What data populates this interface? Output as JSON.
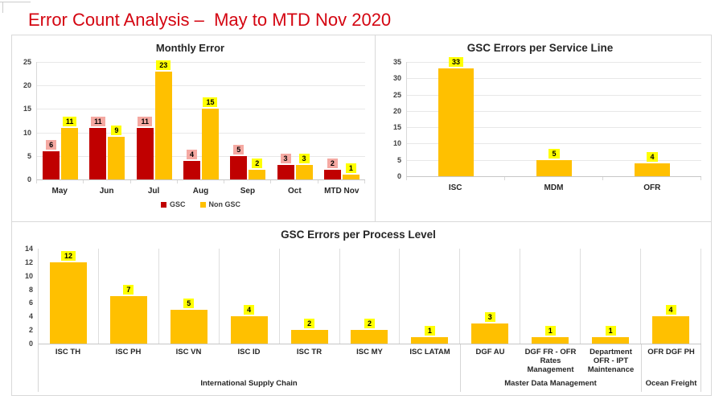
{
  "page_title": "Error Count Analysis –  May to MTD Nov 2020",
  "colors": {
    "title_red": "#D40511",
    "gsc_red": "#C00000",
    "amber": "#FFC000",
    "label_pink": "#F5A9A2",
    "label_yellow": "#FFFF00",
    "box_border": "#D9D9D9",
    "text_dark": "#262626"
  },
  "chart_data": [
    {
      "id": "monthly_error",
      "type": "bar",
      "title": "Monthly Error",
      "categories": [
        "May",
        "Jun",
        "Jul",
        "Aug",
        "Sep",
        "Oct",
        "MTD Nov"
      ],
      "series": [
        {
          "name": "GSC",
          "color": "#C00000",
          "label_bg": "#F5A9A2",
          "values": [
            6,
            11,
            11,
            4,
            5,
            3,
            2
          ]
        },
        {
          "name": "Non GSC",
          "color": "#FFC000",
          "label_bg": "#FFFF00",
          "values": [
            11,
            9,
            23,
            15,
            2,
            3,
            1
          ]
        }
      ],
      "ylim": [
        0,
        25
      ],
      "yticks": [
        0,
        5,
        10,
        15,
        20,
        25
      ],
      "grid": true,
      "legend_position": "bottom"
    },
    {
      "id": "service_line",
      "type": "bar",
      "title": "GSC Errors per Service Line",
      "categories": [
        "ISC",
        "MDM",
        "OFR"
      ],
      "series": [
        {
          "name": "GSC Errors",
          "color": "#FFC000",
          "label_bg": "#FFFF00",
          "values": [
            33,
            5,
            4
          ]
        }
      ],
      "ylim": [
        0,
        35
      ],
      "yticks": [
        0,
        5,
        10,
        15,
        20,
        25,
        30,
        35
      ],
      "grid": true
    },
    {
      "id": "process_level",
      "type": "bar",
      "title": "GSC Errors per Process Level",
      "categories": [
        "ISC TH",
        "ISC PH",
        "ISC VN",
        "ISC ID",
        "ISC TR",
        "ISC MY",
        "ISC LATAM",
        "DGF AU",
        "DGF FR - OFR Rates Management",
        "Department OFR - IPT Maintenance",
        "OFR DGF PH"
      ],
      "series": [
        {
          "name": "GSC Errors",
          "color": "#FFC000",
          "label_bg": "#FFFF00",
          "values": [
            12,
            7,
            5,
            4,
            2,
            2,
            1,
            3,
            1,
            1,
            4
          ]
        }
      ],
      "groups": [
        {
          "label": "International Supply Chain",
          "span": 7
        },
        {
          "label": "Master Data Management",
          "span": 3
        },
        {
          "label": "Ocean Freight",
          "span": 1
        }
      ],
      "ylim": [
        0,
        14
      ],
      "yticks": [
        0,
        2,
        4,
        6,
        8,
        10,
        12,
        14
      ],
      "grid": false
    }
  ]
}
